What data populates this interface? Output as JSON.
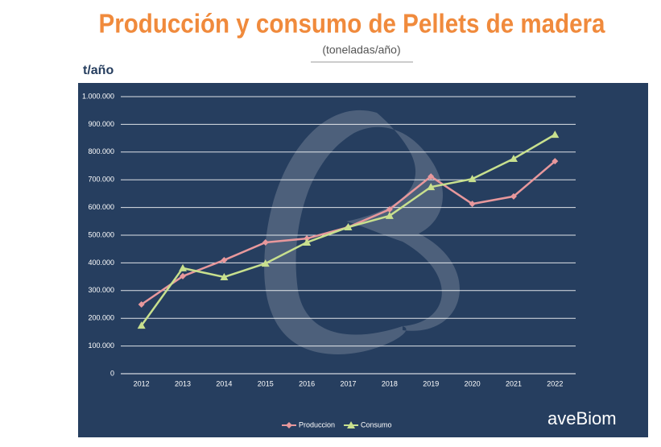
{
  "chart_data": {
    "type": "line",
    "title": "Producción y consumo de Pellets de madera",
    "subtitle": "(toneladas/año)",
    "y_label": "t/año",
    "logo": "aveBiom",
    "categories": [
      "2012",
      "2013",
      "2014",
      "2015",
      "2016",
      "2017",
      "2018",
      "2019",
      "2020",
      "2021",
      "2022"
    ],
    "series": [
      {
        "name": "Produccion",
        "color": "#e8989c",
        "marker": "diamond",
        "values": [
          250000,
          352000,
          410000,
          474000,
          488000,
          529000,
          593000,
          712000,
          613000,
          640000,
          767000
        ]
      },
      {
        "name": "Consumo",
        "color": "#c8e08e",
        "marker": "triangle",
        "values": [
          174000,
          381000,
          349000,
          398000,
          474000,
          529000,
          570000,
          674000,
          703000,
          776000,
          863000
        ]
      }
    ],
    "ylim": [
      0,
      1000000
    ],
    "yticks": [
      0,
      {
        "value": 100000,
        "label": "100.000"
      },
      {
        "value": 200000,
        "label": "200.000"
      },
      {
        "value": 300000,
        "label": "300.000"
      },
      {
        "value": 400000,
        "label": "400.000"
      },
      {
        "value": 500000,
        "label": "500.000"
      },
      {
        "value": 600000,
        "label": "600.000"
      },
      {
        "value": 700000,
        "label": "700.000"
      },
      {
        "value": 800000,
        "label": "800.000"
      },
      {
        "value": 900000,
        "label": "900.000"
      },
      {
        "value": 1000000,
        "label": "1.000.000"
      }
    ],
    "grid": true,
    "legend": "bottom"
  }
}
